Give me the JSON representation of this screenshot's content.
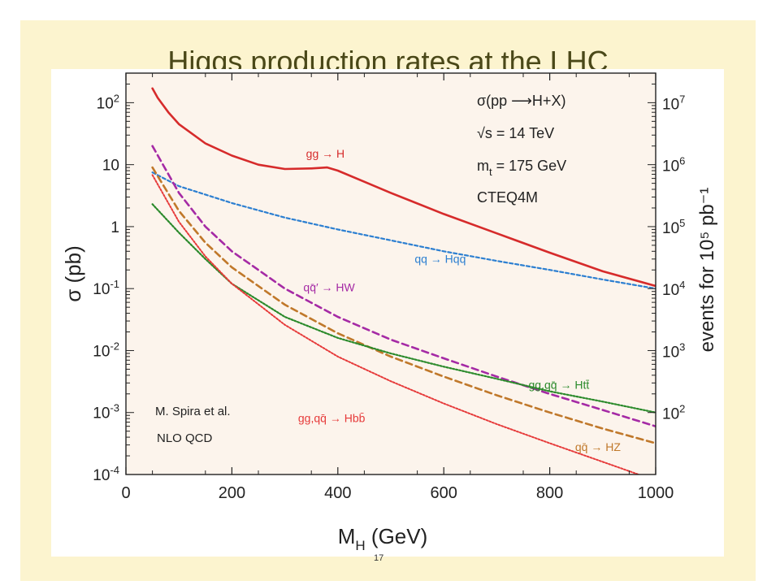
{
  "slide": {
    "title": "Higgs production rates at the LHC",
    "page_number": "17"
  },
  "chart_data": {
    "type": "line",
    "xlabel": "M",
    "xlabel_sub": "H",
    "xlabel_unit": " (GeV)",
    "ylabel_left": "σ (pb)",
    "ylabel_right": "events for 10⁵ pb⁻¹",
    "xlim": [
      0,
      1000
    ],
    "ylim": [
      0.0001,
      300
    ],
    "y_scale": "log",
    "background": "#fcf4ec",
    "x_ticks": [
      0,
      200,
      400,
      600,
      800,
      1000
    ],
    "y_ticks_left": [
      {
        "value": 100,
        "base": "10",
        "exp": "2"
      },
      {
        "value": 10,
        "base": "10",
        "exp": ""
      },
      {
        "value": 1,
        "base": "1",
        "exp": ""
      },
      {
        "value": 0.1,
        "base": "10",
        "exp": "-1"
      },
      {
        "value": 0.01,
        "base": "10",
        "exp": "-2"
      },
      {
        "value": 0.001,
        "base": "10",
        "exp": "-3"
      },
      {
        "value": 0.0001,
        "base": "10",
        "exp": "-4"
      }
    ],
    "y_ticks_right": [
      {
        "value": 100,
        "base": "10",
        "exp": "7"
      },
      {
        "value": 10,
        "base": "10",
        "exp": "6"
      },
      {
        "value": 1,
        "base": "10",
        "exp": "5"
      },
      {
        "value": 0.1,
        "base": "10",
        "exp": "4"
      },
      {
        "value": 0.01,
        "base": "10",
        "exp": "3"
      },
      {
        "value": 0.001,
        "base": "10",
        "exp": "2"
      }
    ],
    "info": {
      "process": "σ(pp ⟶H+X)",
      "energy": "√s = 14 TeV",
      "mass_m": "m",
      "mass_sub": "t",
      "mass_rest": " = 175 GeV",
      "pdf": "CTEQ4M"
    },
    "credit": [
      "M. Spira et al.",
      "NLO  QCD"
    ],
    "series": [
      {
        "key": "ggH",
        "label": "gg → H",
        "color": "#d62b2b",
        "dash": "",
        "width": 2.6,
        "x": [
          50,
          60,
          80,
          100,
          150,
          200,
          250,
          300,
          350,
          380,
          400,
          450,
          500,
          600,
          700,
          800,
          900,
          1000
        ],
        "y": [
          170,
          120,
          70,
          45,
          22,
          14,
          10,
          8.5,
          8.7,
          9,
          8,
          5.3,
          3.5,
          1.6,
          0.78,
          0.38,
          0.19,
          0.11
        ],
        "label_x": 340,
        "label_y": 13
      },
      {
        "key": "qqHqq",
        "label": "qq → Hqq",
        "color": "#2c7fd1",
        "dash": "4,3",
        "width": 2.2,
        "x": [
          50,
          100,
          200,
          300,
          400,
          500,
          600,
          700,
          800,
          900,
          1000
        ],
        "y": [
          7.5,
          4.5,
          2.4,
          1.4,
          0.9,
          0.6,
          0.4,
          0.28,
          0.2,
          0.14,
          0.1
        ],
        "label_x": 545,
        "label_y": 0.26
      },
      {
        "key": "HW",
        "label": "qq̄′ → HW",
        "color": "#a52aa5",
        "dash": "8,5",
        "width": 2.6,
        "x": [
          50,
          100,
          150,
          200,
          300,
          400,
          500,
          600,
          700,
          800,
          900,
          1000
        ],
        "y": [
          20,
          3.5,
          1,
          0.4,
          0.1,
          0.035,
          0.015,
          0.0075,
          0.0038,
          0.002,
          0.0011,
          0.0006
        ],
        "label_x": 335,
        "label_y": 0.09
      },
      {
        "key": "HZ",
        "label": "qq̄ → HZ",
        "color": "#c0782a",
        "dash": "8,5",
        "width": 2.6,
        "x": [
          50,
          100,
          150,
          200,
          300,
          400,
          500,
          600,
          700,
          800,
          900,
          1000
        ],
        "y": [
          9,
          1.8,
          0.55,
          0.22,
          0.055,
          0.019,
          0.008,
          0.0038,
          0.0019,
          0.001,
          0.00055,
          0.00032
        ],
        "label_x": 848,
        "label_y": 0.00024
      },
      {
        "key": "Htt",
        "label": "gg,qq̄ → Htt̄",
        "color": "#2b8a2b",
        "dash": "2,2",
        "width": 2.2,
        "x": [
          50,
          100,
          150,
          200,
          300,
          400,
          500,
          600,
          700,
          800,
          900,
          1000
        ],
        "y": [
          2.3,
          0.8,
          0.3,
          0.12,
          0.035,
          0.016,
          0.009,
          0.0055,
          0.0035,
          0.0022,
          0.0015,
          0.001
        ],
        "label_x": 760,
        "label_y": 0.0024
      },
      {
        "key": "Hbb",
        "label": "gg,qq̄ → Hbb̄",
        "color": "#e63a3a",
        "dash": "2,2",
        "width": 2.0,
        "x": [
          50,
          100,
          150,
          200,
          300,
          400,
          500,
          600,
          700,
          800,
          900,
          1000
        ],
        "y": [
          6.8,
          1.2,
          0.33,
          0.12,
          0.026,
          0.008,
          0.0032,
          0.0014,
          0.00065,
          0.00032,
          0.00016,
          8e-05
        ],
        "label_x": 325,
        "label_y": 0.0007
      }
    ]
  }
}
